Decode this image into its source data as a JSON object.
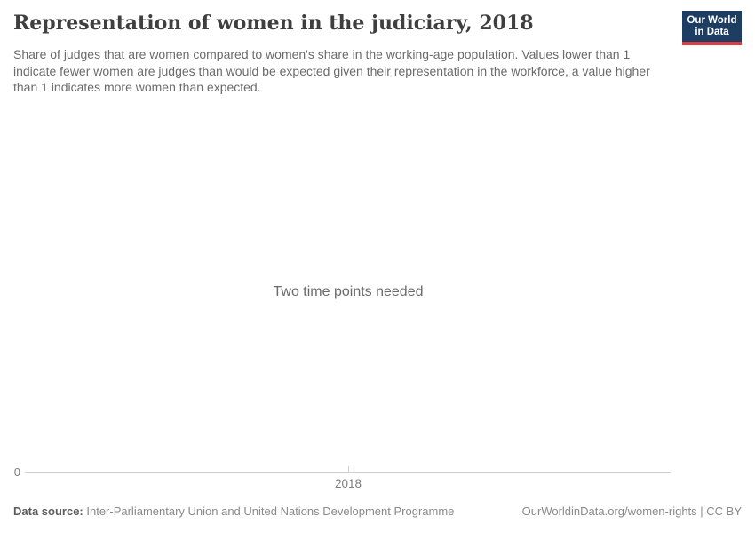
{
  "header": {
    "title": "Representation of women in the judiciary, 2018",
    "subtitle": "Share of judges that are women compared to women's share in the working-age population. Values lower than 1 indicate fewer women are judges than would be expected given their representation in the workforce, a value higher than 1 indicates more women than expected.",
    "logo": {
      "line1": "Our World",
      "line2": "in Data",
      "bg_color": "#1d3d63",
      "accent_color": "#dc3b41"
    }
  },
  "chart": {
    "empty_message": "Two time points needed",
    "y_axis": {
      "tick": "0"
    },
    "x_axis": {
      "tick": "2018"
    },
    "axis_color": "#cfcfcf"
  },
  "footer": {
    "datasource_label": "Data source:",
    "datasource_value": " Inter-Parliamentary Union and United Nations Development Programme",
    "attribution": "OurWorldinData.org/women-rights | CC BY"
  },
  "colors": {
    "title_text": "#3f3f3f",
    "muted_text": "#6b6b6b",
    "axis": "#cfcfcf",
    "footer_text": "#8a8a8a"
  },
  "chart_data": {
    "type": "line",
    "title": "Representation of women in the judiciary, 2018",
    "subtitle": "Share of judges that are women compared to women's share in the working-age population. Values lower than 1 indicate fewer women are judges than would be expected given their representation in the workforce, a value higher than 1 indicates more women than expected.",
    "empty": true,
    "annotations": [
      "Two time points needed"
    ],
    "x": [
      2018
    ],
    "x_ticks": [
      "2018"
    ],
    "y_ticks": [
      "0"
    ],
    "series": [],
    "xlabel": "",
    "ylabel": "",
    "grid": false,
    "legend": "none"
  }
}
